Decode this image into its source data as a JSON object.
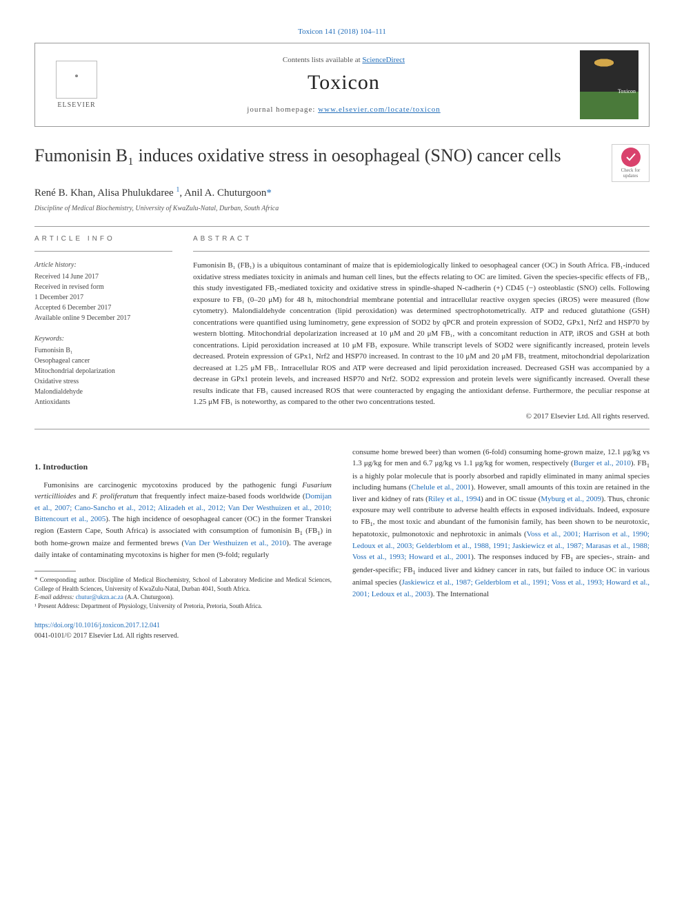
{
  "header_ref": "Toxicon 141 (2018) 104–111",
  "journal_box": {
    "contents_prefix": "Contents lists available at ",
    "contents_link": "ScienceDirect",
    "journal_name": "Toxicon",
    "homepage_prefix": "journal homepage: ",
    "homepage_link": "www.elsevier.com/locate/toxicon",
    "publisher": "ELSEVIER",
    "cover_label": "Toxicon"
  },
  "check": {
    "line1": "Check for",
    "line2": "updates"
  },
  "title": "Fumonisin B₁ induces oxidative stress in oesophageal (SNO) cancer cells",
  "authors_html": "René B. Khan, Alisa Phulukdaree <sup>1</sup>, Anil A. Chuturgoon<span class='ast'>*</span>",
  "affiliation": "Discipline of Medical Biochemistry, University of KwaZulu-Natal, Durban, South Africa",
  "info_label": "ARTICLE INFO",
  "abstract_label": "ABSTRACT",
  "history": {
    "title": "Article history:",
    "lines": [
      "Received 14 June 2017",
      "Received in revised form",
      "1 December 2017",
      "Accepted 6 December 2017",
      "Available online 9 December 2017"
    ]
  },
  "keywords": {
    "title": "Keywords:",
    "items": [
      "Fumonisin B₁",
      "Oesophageal cancer",
      "Mitochondrial depolarization",
      "Oxidative stress",
      "Malondialdehyde",
      "Antioxidants"
    ]
  },
  "abstract": "Fumonisin B₁ (FB₁) is a ubiquitous contaminant of maize that is epidemiologically linked to oesophageal cancer (OC) in South Africa. FB₁-induced oxidative stress mediates toxicity in animals and human cell lines, but the effects relating to OC are limited. Given the species-specific effects of FB₁, this study investigated FB₁-mediated toxicity and oxidative stress in spindle-shaped N-cadherin (+) CD45 (−) osteoblastic (SNO) cells. Following exposure to FB₁ (0–20 μM) for 48 h, mitochondrial membrane potential and intracellular reactive oxygen species (iROS) were measured (flow cytometry). Malondialdehyde concentration (lipid peroxidation) was determined spectrophotometrically. ATP and reduced glutathione (GSH) concentrations were quantified using luminometry, gene expression of SOD2 by qPCR and protein expression of SOD2, GPx1, Nrf2 and HSP70 by western blotting. Mitochondrial depolarization increased at 10 μM and 20 μM FB₁, with a concomitant reduction in ATP, iROS and GSH at both concentrations. Lipid peroxidation increased at 10 μM FB₁ exposure. While transcript levels of SOD2 were significantly increased, protein levels decreased. Protein expression of GPx1, Nrf2 and HSP70 increased. In contrast to the 10 μM and 20 μM FB₁ treatment, mitochondrial depolarization decreased at 1.25 μM FB₁. Intracellular ROS and ATP were decreased and lipid peroxidation increased. Decreased GSH was accompanied by a decrease in GPx1 protein levels, and increased HSP70 and Nrf2. SOD2 expression and protein levels were significantly increased. Overall these results indicate that FB₁ caused increased ROS that were counteracted by engaging the antioxidant defense. Furthermore, the peculiar response at 1.25 μM FB₁ is noteworthy, as compared to the other two concentrations tested.",
  "copyright": "© 2017 Elsevier Ltd. All rights reserved.",
  "intro_head": "1. Introduction",
  "col_left": "Fumonisins are carcinogenic mycotoxins produced by the pathogenic fungi <i>Fusarium verticillioides</i> and <i>F. proliferatum</i> that frequently infect maize-based foods worldwide (<a href='#'>Domijan et al., 2007; Cano-Sancho et al., 2012; Alizadeh et al., 2012; Van Der Westhuizen et al., 2010; Bittencourt et al., 2005</a>). The high incidence of oesophageal cancer (OC) in the former Transkei region (Eastern Cape, South Africa) is associated with consumption of fumonisin B<sub>1</sub> (FB<sub>1</sub>) in both home-grown maize and fermented brews (<a href='#'>Van Der Westhuizen et al., 2010</a>). The average daily intake of contaminating mycotoxins is higher for men (9-fold; regularly",
  "col_right": "consume home brewed beer) than women (6-fold) consuming home-grown maize, 12.1 μg/kg vs 1.3 μg/kg for men and 6.7 μg/kg vs 1.1 μg/kg for women, respectively (<a href='#'>Burger et al., 2010</a>). FB<sub>1</sub> is a highly polar molecule that is poorly absorbed and rapidly eliminated in many animal species including humans (<a href='#'>Chelule et al., 2001</a>). However, small amounts of this toxin are retained in the liver and kidney of rats (<a href='#'>Riley et al., 1994</a>) and in OC tissue (<a href='#'>Myburg et al., 2009</a>). Thus, chronic exposure may well contribute to adverse health effects in exposed individuals. Indeed, exposure to FB<sub>1</sub>, the most toxic and abundant of the fumonisin family, has been shown to be neurotoxic, hepatotoxic, pulmonotoxic and nephrotoxic in animals (<a href='#'>Voss et al., 2001; Harrison et al., 1990; Ledoux et al., 2003; Gelderblom et al., 1988, 1991; Jaskiewicz et al., 1987; Marasas et al., 1988; Voss et al., 1993; Howard et al., 2001</a>). The responses induced by FB<sub>1</sub> are species-, strain- and gender-specific; FB<sub>1</sub> induced liver and kidney cancer in rats, but failed to induce OC in various animal species (<a href='#'>Jaskiewicz et al., 1987; Gelderblom et al., 1991; Voss et al., 1993; Howard et al., 2001; Ledoux et al., 2003</a>). The International",
  "footnotes": {
    "corr": "* Corresponding author. Discipline of Medical Biochemistry, School of Laboratory Medicine and Medical Sciences, College of Health Sciences, University of KwaZulu-Natal, Durban 4041, South Africa.",
    "email_label": "E-mail address: ",
    "email": "chutur@ukzn.ac.za",
    "email_suffix": " (A.A. Chuturgoon).",
    "note1": "¹ Present Address: Department of Physiology, University of Pretoria, Pretoria, South Africa."
  },
  "footer": {
    "doi": "https://doi.org/10.1016/j.toxicon.2017.12.041",
    "issn_line": "0041-0101/© 2017 Elsevier Ltd. All rights reserved."
  },
  "colors": {
    "link": "#1e6bb8",
    "text": "#333333",
    "rule": "#999999",
    "badge": "#d9416c"
  }
}
